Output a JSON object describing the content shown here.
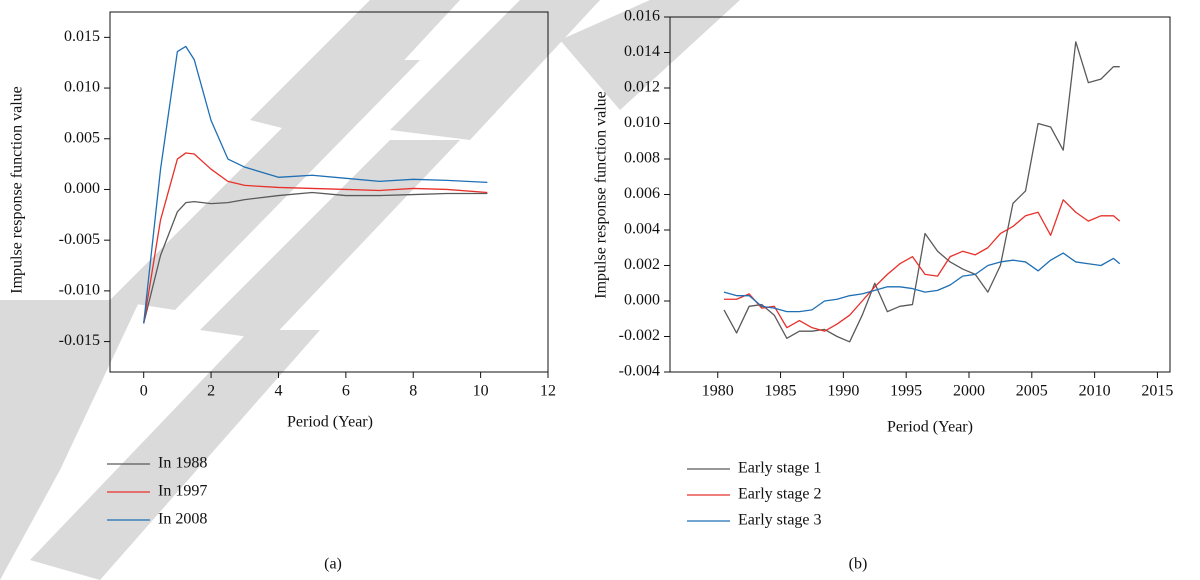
{
  "chart_data": [
    {
      "type": "line",
      "caption": "(a)",
      "x_label": "Period (Year)",
      "y_label": "Impulse response function value",
      "x": [
        0,
        0.5,
        1,
        1.25,
        1.5,
        2,
        2.5,
        3,
        4,
        5,
        6,
        7,
        8,
        9,
        10.2
      ],
      "series": [
        {
          "name": "In 1988",
          "color": "#5a5a5a",
          "values": [
            -0.0132,
            -0.0065,
            -0.0022,
            -0.0013,
            -0.0012,
            -0.0014,
            -0.0013,
            -0.001,
            -0.0006,
            -0.0003,
            -0.0006,
            -0.0006,
            -0.0005,
            -0.0004,
            -0.0004
          ]
        },
        {
          "name": "In 1997",
          "color": "#e8302a",
          "values": [
            -0.0132,
            -0.003,
            0.003,
            0.0036,
            0.0035,
            0.002,
            0.0008,
            0.0004,
            0.0002,
            0.0001,
            0,
            -0.0001,
            0.0001,
            0,
            -0.0003
          ]
        },
        {
          "name": "In 2008",
          "color": "#1f6fb5",
          "values": [
            -0.0132,
            0.002,
            0.0136,
            0.0141,
            0.0128,
            0.0068,
            0.003,
            0.0022,
            0.0012,
            0.0014,
            0.0011,
            0.0008,
            0.001,
            0.0009,
            0.0007
          ]
        }
      ],
      "xlim": [
        -1,
        12
      ],
      "xticks": [
        0,
        2,
        4,
        6,
        8,
        10,
        12
      ],
      "ylim": [
        -0.018,
        0.0175
      ],
      "yticks": [
        -0.015,
        {
          "value": -0.01,
          "label": "-0.010"
        },
        -0.005,
        {
          "value": 0,
          "label": "0.000"
        },
        0.005,
        {
          "value": 0.01,
          "label": "0.010"
        },
        0.015
      ],
      "legend": "bottom",
      "grid": false
    },
    {
      "type": "line",
      "caption": "(b)",
      "x_label": "Period (Year)",
      "y_label": "Impulse response function value",
      "x": [
        1980.5,
        1981.5,
        1982.5,
        1983.5,
        1984.5,
        1985.5,
        1986.5,
        1987.5,
        1988.5,
        1989.5,
        1990.5,
        1991.5,
        1992.5,
        1993.5,
        1994.5,
        1995.5,
        1996.5,
        1997.5,
        1998.5,
        1999.5,
        2000.5,
        2001.5,
        2002.5,
        2003.5,
        2004.5,
        2005.5,
        2006.5,
        2007.5,
        2008.5,
        2009.5,
        2010.5,
        2011.5,
        2012
      ],
      "series": [
        {
          "name": "Early stage 1",
          "color": "#5a5a5a",
          "values": [
            -0.0005,
            -0.0018,
            -0.0003,
            -0.0002,
            -0.0008,
            -0.0021,
            -0.0017,
            -0.0017,
            -0.0016,
            -0.002,
            -0.0023,
            -0.0008,
            0.001,
            -0.0006,
            -0.0003,
            -0.0002,
            0.0038,
            0.0028,
            0.0022,
            0.0018,
            0.0015,
            0.0005,
            0.002,
            0.0055,
            0.0062,
            0.01,
            0.0098,
            0.0085,
            0.0146,
            0.0123,
            0.0125,
            0.0132,
            0.0132
          ]
        },
        {
          "name": "Early stage 2",
          "color": "#e8302a",
          "values": [
            0.0001,
            0.0001,
            0.0004,
            -0.0004,
            -0.0003,
            -0.0015,
            -0.0011,
            -0.0015,
            -0.0017,
            -0.0013,
            -0.0008,
            0,
            0.0008,
            0.0015,
            0.0021,
            0.0025,
            0.0015,
            0.0014,
            0.0025,
            0.0028,
            0.0026,
            0.003,
            0.0038,
            0.0042,
            0.0048,
            0.005,
            0.0037,
            0.0057,
            0.005,
            0.0045,
            0.0048,
            0.0048,
            0.0045
          ]
        },
        {
          "name": "Early stage 3",
          "color": "#1f6fb5",
          "values": [
            0.0005,
            0.0003,
            0.0003,
            -0.0003,
            -0.0004,
            -0.0006,
            -0.0006,
            -0.0005,
            0,
            0.0001,
            0.0003,
            0.0004,
            0.0006,
            0.0008,
            0.0008,
            0.0007,
            0.0005,
            0.0006,
            0.0009,
            0.0014,
            0.0015,
            0.002,
            0.0022,
            0.0023,
            0.0022,
            0.0017,
            0.0023,
            0.0027,
            0.0022,
            0.0021,
            0.002,
            0.0024,
            0.0021
          ]
        }
      ],
      "xlim": [
        1976.2,
        2016
      ],
      "xticks": [
        1980,
        1985,
        1990,
        1995,
        2000,
        2005,
        2010,
        2015
      ],
      "ylim": [
        -0.004,
        0.016
      ],
      "yticks": [
        -0.004,
        -0.002,
        {
          "value": 0,
          "label": "0.000"
        },
        0.002,
        0.004,
        0.006,
        0.008,
        {
          "value": 0.01,
          "label": "0.010"
        },
        0.012,
        0.014,
        0.016
      ],
      "legend": "bottom",
      "grid": false
    }
  ]
}
